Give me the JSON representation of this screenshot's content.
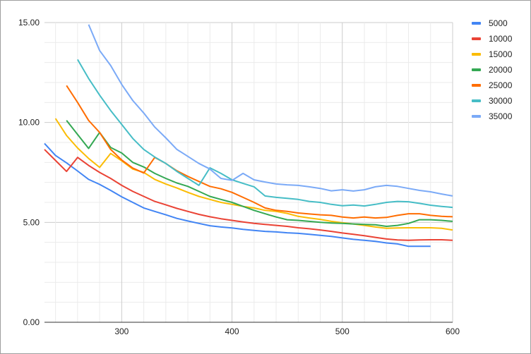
{
  "chart_data": {
    "type": "line",
    "title": "",
    "xlabel": "",
    "ylabel": "",
    "xlim": [
      230,
      600
    ],
    "ylim": [
      0,
      15
    ],
    "x_ticks": [
      "300",
      "400",
      "500",
      "600"
    ],
    "y_ticks": [
      "0.00",
      "5.00",
      "10.00",
      "15.00"
    ],
    "grid": true,
    "legend_position": "right",
    "x": [
      230,
      240,
      250,
      260,
      270,
      280,
      290,
      300,
      310,
      320,
      330,
      340,
      350,
      360,
      370,
      380,
      390,
      400,
      410,
      420,
      430,
      440,
      450,
      460,
      470,
      480,
      490,
      500,
      510,
      520,
      530,
      540,
      550,
      560,
      570,
      580,
      590,
      600
    ],
    "series": [
      {
        "name": "5000",
        "color": "#4285f4",
        "values": [
          8.95,
          8.35,
          7.98,
          7.57,
          7.15,
          6.9,
          6.6,
          6.28,
          6.0,
          5.72,
          5.55,
          5.38,
          5.2,
          5.07,
          4.95,
          4.83,
          4.77,
          4.72,
          4.65,
          4.6,
          4.55,
          4.52,
          4.48,
          4.45,
          4.4,
          4.35,
          4.3,
          4.22,
          4.15,
          4.1,
          4.05,
          3.97,
          3.92,
          3.8,
          3.8,
          3.8,
          null,
          null
        ]
      },
      {
        "name": "10000",
        "color": "#ea4335",
        "values": [
          8.65,
          8.1,
          7.55,
          8.25,
          7.85,
          7.5,
          7.2,
          6.85,
          6.55,
          6.3,
          6.05,
          5.88,
          5.7,
          5.55,
          5.4,
          5.28,
          5.18,
          5.1,
          5.02,
          4.95,
          4.9,
          4.85,
          4.8,
          4.73,
          4.68,
          4.62,
          4.55,
          4.47,
          4.4,
          4.33,
          4.25,
          4.17,
          4.12,
          4.1,
          4.12,
          4.13,
          4.13,
          4.1
        ]
      },
      {
        "name": "15000",
        "color": "#fbbc04",
        "values": [
          null,
          10.2,
          9.35,
          8.72,
          8.2,
          7.75,
          8.45,
          8.08,
          7.67,
          7.5,
          7.15,
          6.92,
          6.72,
          6.5,
          6.3,
          6.15,
          6.0,
          5.9,
          5.8,
          5.72,
          5.6,
          5.55,
          5.45,
          5.3,
          5.22,
          5.15,
          5.05,
          4.98,
          4.92,
          4.85,
          4.77,
          4.7,
          4.72,
          4.73,
          4.73,
          4.73,
          4.7,
          4.62
        ]
      },
      {
        "name": "20000",
        "color": "#34a853",
        "values": [
          null,
          null,
          10.1,
          9.4,
          8.7,
          9.5,
          8.75,
          8.47,
          8.0,
          7.77,
          7.45,
          7.2,
          6.97,
          6.8,
          6.55,
          6.3,
          6.15,
          6.0,
          5.8,
          5.6,
          5.43,
          5.27,
          5.13,
          5.1,
          5.05,
          5.0,
          4.97,
          4.95,
          4.92,
          4.9,
          4.88,
          4.8,
          4.85,
          4.95,
          5.13,
          5.13,
          5.1,
          5.05
        ]
      },
      {
        "name": "25000",
        "color": "#ff6d01",
        "values": [
          null,
          null,
          11.85,
          11.0,
          10.1,
          9.5,
          8.65,
          8.12,
          7.72,
          7.47,
          8.25,
          7.95,
          7.58,
          7.3,
          7.05,
          6.8,
          6.68,
          6.5,
          6.25,
          6.0,
          5.72,
          5.6,
          5.55,
          5.47,
          5.42,
          5.38,
          5.35,
          5.27,
          5.22,
          5.27,
          5.22,
          5.25,
          5.35,
          5.43,
          5.43,
          5.35,
          5.3,
          5.28
        ]
      },
      {
        "name": "30000",
        "color": "#46bdc6",
        "values": [
          null,
          null,
          null,
          13.15,
          12.2,
          11.37,
          10.6,
          9.9,
          9.2,
          8.65,
          8.27,
          7.95,
          7.55,
          7.2,
          6.85,
          7.73,
          7.45,
          7.13,
          6.95,
          6.78,
          6.32,
          6.25,
          6.2,
          6.15,
          6.05,
          6.0,
          5.9,
          5.83,
          5.87,
          5.82,
          5.9,
          6.0,
          6.05,
          6.03,
          5.95,
          5.86,
          5.8,
          5.75
        ]
      },
      {
        "name": "35000",
        "color": "#7baaf7",
        "values": [
          null,
          null,
          null,
          null,
          14.9,
          13.6,
          12.85,
          11.9,
          11.1,
          10.47,
          9.77,
          9.23,
          8.65,
          8.3,
          7.95,
          7.67,
          7.2,
          7.1,
          7.45,
          7.13,
          7.02,
          6.92,
          6.88,
          6.85,
          6.78,
          6.7,
          6.58,
          6.63,
          6.57,
          6.63,
          6.78,
          6.85,
          6.8,
          6.7,
          6.6,
          6.53,
          6.42,
          6.32
        ]
      }
    ]
  }
}
